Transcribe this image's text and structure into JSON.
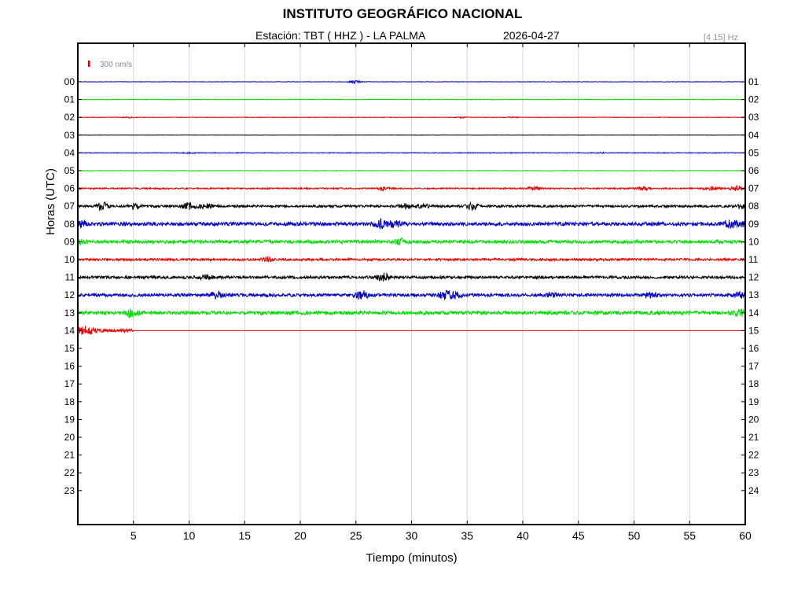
{
  "header": {
    "title": "INSTITUTO GEOGRÁFICO NACIONAL",
    "station": "Estación:  TBT ( HHZ ) - LA PALMA",
    "date": "2026-04-27",
    "filter": "[4 15] Hz"
  },
  "chart_data": {
    "type": "line",
    "title": "INSTITUTO GEOGRÁFICO NACIONAL",
    "xlabel": "Tiempo (minutos)",
    "ylabel": "Horas (UTC)",
    "xlim": [
      0,
      60
    ],
    "x_ticks": [
      5,
      10,
      15,
      20,
      25,
      30,
      35,
      40,
      45,
      50,
      55,
      60
    ],
    "left_ticks": [
      "00",
      "01",
      "02",
      "03",
      "04",
      "05",
      "06",
      "07",
      "08",
      "09",
      "10",
      "11",
      "12",
      "13",
      "14",
      "15",
      "16",
      "17",
      "18",
      "19",
      "20",
      "21",
      "22",
      "23"
    ],
    "right_ticks": [
      "01",
      "02",
      "03",
      "04",
      "05",
      "06",
      "07",
      "08",
      "09",
      "10",
      "11",
      "12",
      "13",
      "14",
      "15",
      "16",
      "17",
      "18",
      "19",
      "20",
      "21",
      "22",
      "23",
      "24"
    ],
    "scale_label": "300 nm/s",
    "grid": "vertical",
    "colors": {
      "blue": "#0000cc",
      "green": "#00dd00",
      "red": "#ee0000",
      "black": "#000000",
      "grid": "#d8d8d8",
      "scale_bar": "#dd0000"
    },
    "series": [
      {
        "hour": 0,
        "color": "#0000cc",
        "noise": 0.25,
        "end_minute": 60,
        "events": [
          [
            25.0,
            1.8
          ]
        ]
      },
      {
        "hour": 1,
        "color": "#00dd00",
        "noise": 0.3,
        "end_minute": 60,
        "events": []
      },
      {
        "hour": 2,
        "color": "#ee0000",
        "noise": 0.35,
        "end_minute": 60,
        "events": [
          [
            4.5,
            0.6
          ],
          [
            34.5,
            0.6
          ],
          [
            39.0,
            0.5
          ]
        ]
      },
      {
        "hour": 3,
        "color": "#000000",
        "noise": 0.2,
        "end_minute": 60,
        "events": []
      },
      {
        "hour": 4,
        "color": "#0000cc",
        "noise": 0.45,
        "end_minute": 60,
        "events": [
          [
            10.0,
            0.5
          ],
          [
            47.0,
            0.5
          ]
        ]
      },
      {
        "hour": 5,
        "color": "#00dd00",
        "noise": 0.3,
        "end_minute": 60,
        "events": []
      },
      {
        "hour": 6,
        "color": "#ee0000",
        "noise": 0.9,
        "end_minute": 60,
        "events": [
          [
            27.5,
            1.8
          ],
          [
            41.0,
            2.0
          ],
          [
            50.8,
            2.2
          ],
          [
            57.0,
            2.2
          ],
          [
            59.2,
            3.0
          ]
        ]
      },
      {
        "hour": 7,
        "color": "#000000",
        "noise": 1.4,
        "end_minute": 60,
        "events": [
          [
            2.2,
            4.5
          ],
          [
            5.0,
            3.5
          ],
          [
            10.0,
            4.0
          ],
          [
            11.5,
            3.0
          ],
          [
            29.5,
            3.0
          ],
          [
            31.0,
            2.5
          ],
          [
            35.5,
            3.8
          ],
          [
            59.8,
            2.5
          ]
        ]
      },
      {
        "hour": 8,
        "color": "#0000cc",
        "noise": 2.2,
        "end_minute": 60,
        "events": [
          [
            0.2,
            4.0
          ],
          [
            27.2,
            4.5
          ],
          [
            28.5,
            3.5
          ],
          [
            58.5,
            4.0
          ],
          [
            59.5,
            3.5
          ]
        ]
      },
      {
        "hour": 9,
        "color": "#00dd00",
        "noise": 2.0,
        "end_minute": 60,
        "events": [
          [
            0.3,
            2.5
          ],
          [
            29.0,
            3.2
          ]
        ]
      },
      {
        "hour": 10,
        "color": "#ee0000",
        "noise": 1.5,
        "end_minute": 60,
        "events": [
          [
            17.0,
            2.2
          ]
        ]
      },
      {
        "hour": 11,
        "color": "#000000",
        "noise": 1.7,
        "end_minute": 60,
        "events": [
          [
            11.5,
            2.5
          ],
          [
            27.5,
            4.5
          ]
        ]
      },
      {
        "hour": 12,
        "color": "#0000cc",
        "noise": 1.9,
        "end_minute": 60,
        "events": [
          [
            12.5,
            4.0
          ],
          [
            25.5,
            5.5
          ],
          [
            33.0,
            4.5
          ],
          [
            34.0,
            3.5
          ],
          [
            42.5,
            2.5
          ],
          [
            51.5,
            3.0
          ],
          [
            59.5,
            2.8
          ]
        ]
      },
      {
        "hour": 13,
        "color": "#00dd00",
        "noise": 2.2,
        "end_minute": 60,
        "events": [
          [
            4.8,
            5.0
          ],
          [
            59.5,
            3.5
          ]
        ]
      },
      {
        "hour": 14,
        "color": "#ee0000",
        "noise": 2.0,
        "end_minute": 5,
        "events": [
          [
            0.4,
            4.0
          ],
          [
            1.2,
            2.5
          ]
        ]
      }
    ]
  }
}
